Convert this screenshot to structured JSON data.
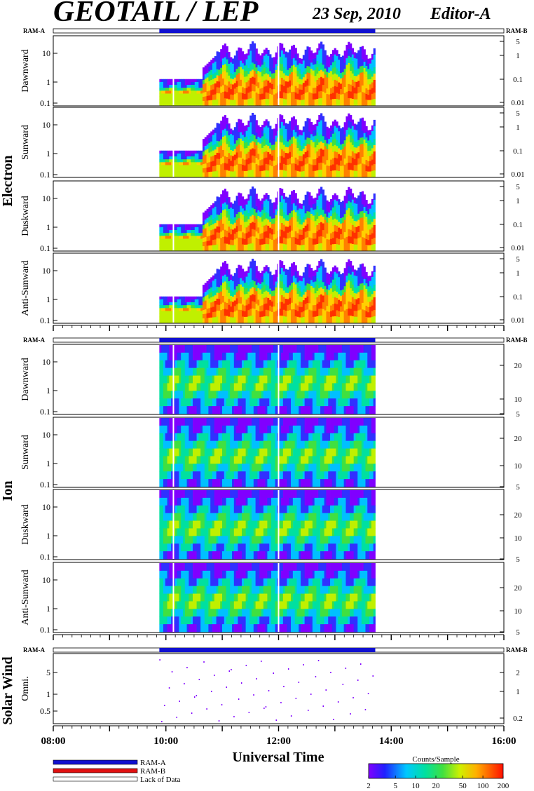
{
  "header": {
    "title": "GEOTAIL / LEP",
    "date": "23 Sep, 2010",
    "editor": "Editor-A"
  },
  "labels": {
    "ram_a": "RAM-A",
    "ram_b": "RAM-B",
    "group_electron": "Electron",
    "group_ion": "Ion",
    "group_solar_wind": "Solar Wind",
    "xlabel": "Universal Time"
  },
  "legend": {
    "items": [
      "RAM-A",
      "RAM-B",
      "Lack of Data"
    ],
    "colors": [
      "#1010d0",
      "#e01010",
      "#ffffff"
    ],
    "colorbar_title": "Counts/Sample",
    "colorbar_ticks": [
      "2",
      "5",
      "10",
      "20",
      "50",
      "100",
      "200"
    ]
  },
  "colors": {
    "ram_a": "#1010d0",
    "ram_b": "#e01010",
    "spectrogram_scale": [
      "#8000ff",
      "#3030ff",
      "#00c0ff",
      "#00e0a0",
      "#40e040",
      "#c0f000",
      "#ffd000",
      "#ff8000",
      "#ff3000"
    ]
  },
  "chart_data": {
    "type": "heatmap",
    "xlabel": "Universal Time",
    "x_range": [
      "08:00",
      "16:00"
    ],
    "x_ticks": [
      "08:00",
      "10:00",
      "12:00",
      "14:00",
      "16:00"
    ],
    "data_coverage": [
      "09:53",
      "13:43"
    ],
    "data_gaps": [
      "10:08",
      "12:00"
    ],
    "ram_status": [
      {
        "mode": "RAM-A",
        "start": "09:53",
        "end": "13:43"
      }
    ],
    "colorbar": {
      "label": "Counts/Sample",
      "scale": "log",
      "range": [
        2,
        200
      ],
      "ticks": [
        2,
        5,
        10,
        20,
        50,
        100,
        200
      ]
    },
    "panels": [
      {
        "group": "Electron",
        "name": "Dawnward",
        "left_ticks": [
          "10",
          "1",
          "0.1"
        ],
        "right_ticks": [
          "5",
          "1",
          "0.1",
          "0.01"
        ]
      },
      {
        "group": "Electron",
        "name": "Sunward",
        "left_ticks": [
          "10",
          "1",
          "0.1"
        ],
        "right_ticks": [
          "5",
          "1",
          "0.1",
          "0.01"
        ]
      },
      {
        "group": "Electron",
        "name": "Duskward",
        "left_ticks": [
          "10",
          "1",
          "0.1"
        ],
        "right_ticks": [
          "5",
          "1",
          "0.1",
          "0.01"
        ]
      },
      {
        "group": "Electron",
        "name": "Anti-Sunward",
        "left_ticks": [
          "10",
          "1",
          "0.1"
        ],
        "right_ticks": [
          "5",
          "1",
          "0.1",
          "0.01"
        ]
      },
      {
        "group": "Ion",
        "name": "Dawnward",
        "left_ticks": [
          "10",
          "1",
          "0.1"
        ],
        "right_ticks": [
          "20",
          "10",
          "5"
        ]
      },
      {
        "group": "Ion",
        "name": "Sunward",
        "left_ticks": [
          "10",
          "1",
          "0.1"
        ],
        "right_ticks": [
          "20",
          "10",
          "5"
        ]
      },
      {
        "group": "Ion",
        "name": "Duskward",
        "left_ticks": [
          "10",
          "1",
          "0.1"
        ],
        "right_ticks": [
          "20",
          "10",
          "5"
        ]
      },
      {
        "group": "Ion",
        "name": "Anti-Sunward",
        "left_ticks": [
          "10",
          "1",
          "0.1"
        ],
        "right_ticks": [
          "20",
          "10",
          "5"
        ]
      },
      {
        "group": "Solar Wind",
        "name": "Omni.",
        "left_ticks": [
          "5",
          "1",
          "0.5"
        ],
        "right_ticks": [
          "2",
          "1",
          "0.2"
        ]
      }
    ]
  }
}
